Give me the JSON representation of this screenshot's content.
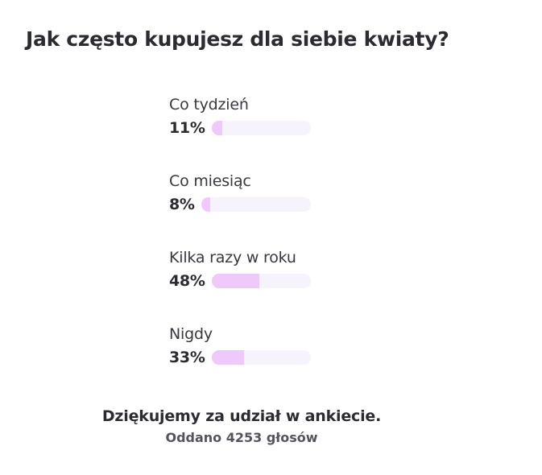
{
  "poll": {
    "title": "Jak często kupujesz dla siebie kwiaty?",
    "options": [
      {
        "label": "Co tydzień",
        "percent_label": "11%",
        "percent": 11
      },
      {
        "label": "Co miesiąc",
        "percent_label": "8%",
        "percent": 8
      },
      {
        "label": "Kilka razy w roku",
        "percent_label": "48%",
        "percent": 48
      },
      {
        "label": "Nigdy",
        "percent_label": "33%",
        "percent": 33
      }
    ],
    "thanks_message": "Dziękujemy za udział w ankiecie.",
    "votes_cast": "Oddano 4253 głosów"
  },
  "colors": {
    "bar_track": "#f7f3fd",
    "bar_fill": "#efc9fb",
    "text_primary": "#2d2a32",
    "text_secondary": "#57535e"
  }
}
